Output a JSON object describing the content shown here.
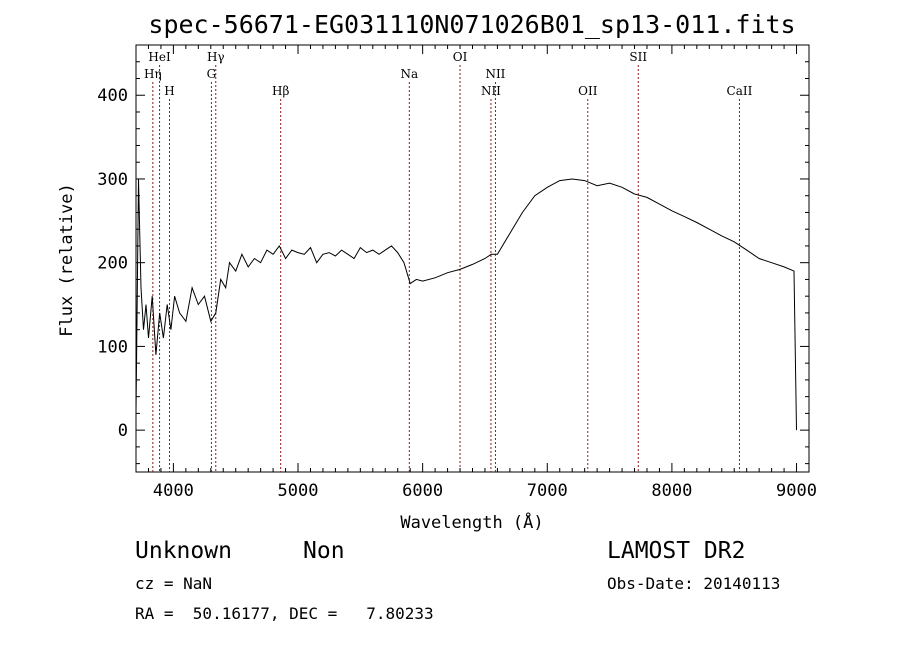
{
  "chart_data": {
    "type": "line",
    "title": "spec-56671-EG031110N071026B01_sp13-011.fits",
    "xlabel": "Wavelength (Å)",
    "ylabel": "Flux (relative)",
    "xlim": [
      3700,
      9100
    ],
    "ylim": [
      -50,
      460
    ],
    "x_ticks": [
      4000,
      5000,
      6000,
      7000,
      8000,
      9000
    ],
    "y_ticks": [
      0,
      100,
      200,
      300,
      400
    ],
    "grid": false,
    "series_color": "#000000",
    "line_marker_color": "#8b1a1a",
    "spectral_lines": [
      {
        "label": "Hη",
        "wavelength": 3835,
        "row": 2
      },
      {
        "label": "HeI",
        "wavelength": 3889,
        "row": 1
      },
      {
        "label": "H",
        "wavelength": 3969,
        "row": 3
      },
      {
        "label": "Hγ",
        "wavelength": 4340,
        "row": 1
      },
      {
        "label": "G",
        "wavelength": 4305,
        "row": 2
      },
      {
        "label": "Hβ",
        "wavelength": 4861,
        "row": 3
      },
      {
        "label": "Na",
        "wavelength": 5893,
        "row": 2
      },
      {
        "label": "OI",
        "wavelength": 6300,
        "row": 1
      },
      {
        "label": "NII",
        "wavelength": 6548,
        "row": 3
      },
      {
        "label": "NII",
        "wavelength": 6584,
        "row": 2
      },
      {
        "label": "OII",
        "wavelength": 7325,
        "row": 3
      },
      {
        "label": "SII",
        "wavelength": 7730,
        "row": 1
      },
      {
        "label": "CaII",
        "wavelength": 8542,
        "row": 3
      }
    ],
    "series": [
      {
        "x": [
          3700,
          3720,
          3740,
          3760,
          3780,
          3800,
          3830,
          3860,
          3890,
          3920,
          3950,
          3980,
          4010,
          4050,
          4100,
          4150,
          4200,
          4250,
          4300,
          4340,
          4380,
          4420,
          4450,
          4500,
          4550,
          4600,
          4650,
          4700,
          4750,
          4800,
          4850,
          4900,
          4950,
          5000,
          5050,
          5100,
          5150,
          5200,
          5250,
          5300,
          5350,
          5400,
          5450,
          5500,
          5550,
          5600,
          5650,
          5700,
          5750,
          5800,
          5850,
          5900,
          5950,
          6000,
          6100,
          6200,
          6300,
          6400,
          6500,
          6550,
          6600,
          6700,
          6800,
          6900,
          7000,
          7100,
          7200,
          7300,
          7400,
          7500,
          7600,
          7700,
          7800,
          7900,
          8000,
          8100,
          8200,
          8300,
          8400,
          8500,
          8600,
          8700,
          8800,
          8900,
          8980,
          9000
        ],
        "y": [
          20,
          300,
          170,
          120,
          150,
          110,
          160,
          90,
          140,
          110,
          150,
          120,
          160,
          140,
          130,
          170,
          150,
          160,
          130,
          140,
          180,
          170,
          200,
          190,
          210,
          195,
          205,
          200,
          215,
          210,
          220,
          205,
          215,
          212,
          210,
          218,
          200,
          210,
          212,
          208,
          215,
          210,
          205,
          218,
          212,
          215,
          210,
          215,
          220,
          212,
          200,
          175,
          180,
          178,
          182,
          188,
          192,
          198,
          205,
          210,
          210,
          235,
          260,
          280,
          290,
          298,
          300,
          298,
          292,
          295,
          290,
          282,
          278,
          270,
          262,
          255,
          248,
          240,
          232,
          225,
          215,
          205,
          200,
          195,
          190,
          0
        ]
      }
    ]
  },
  "info": {
    "class_label": "Unknown",
    "subclass_label": "Non",
    "survey": "LAMOST DR2",
    "cz": "cz = NaN",
    "obs_date": "Obs-Date: 20140113",
    "coords": "RA =  50.16177, DEC =   7.80233"
  }
}
